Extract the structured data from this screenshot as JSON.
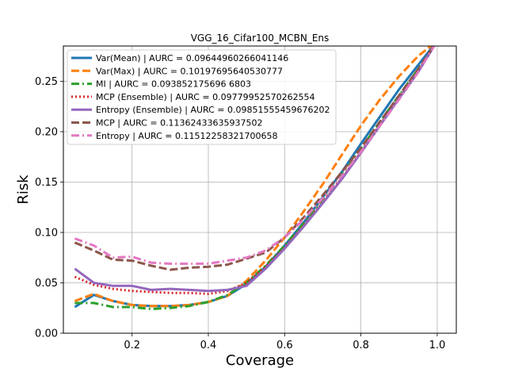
{
  "chart_data": {
    "type": "line",
    "title": "VGG_16_Cifar100_MCBN_Ens",
    "xlabel": "Coverage",
    "ylabel": "Risk",
    "xlim": [
      0.02,
      1.05
    ],
    "ylim": [
      0.0,
      0.285
    ],
    "xticks": [
      0.2,
      0.4,
      0.6,
      0.8,
      1.0
    ],
    "xtick_labels": [
      "0.2",
      "0.4",
      "0.6",
      "0.8",
      "1.0"
    ],
    "yticks": [
      0.0,
      0.05,
      0.1,
      0.15,
      0.2,
      0.25
    ],
    "ytick_labels": [
      "0.00",
      "0.05",
      "0.10",
      "0.15",
      "0.20",
      "0.25"
    ],
    "grid": true,
    "legend_position": "upper-left",
    "series": [
      {
        "name": "Var(Mean) | AURC = 0.09644960266041146",
        "color": "#1f77b4",
        "dash": "solid",
        "x": [
          0.05,
          0.1,
          0.15,
          0.2,
          0.25,
          0.3,
          0.35,
          0.4,
          0.45,
          0.5,
          0.55,
          0.6,
          0.65,
          0.7,
          0.75,
          0.8,
          0.85,
          0.9,
          0.95,
          1.0
        ],
        "y": [
          0.026,
          0.038,
          0.032,
          0.028,
          0.027,
          0.027,
          0.028,
          0.031,
          0.037,
          0.049,
          0.066,
          0.087,
          0.11,
          0.135,
          0.16,
          0.188,
          0.215,
          0.242,
          0.266,
          0.29
        ]
      },
      {
        "name": "Var(Max) | AURC = 0.10197695640530777",
        "color": "#ff7f0e",
        "dash": "dashed",
        "x": [
          0.05,
          0.1,
          0.15,
          0.2,
          0.25,
          0.3,
          0.35,
          0.4,
          0.45,
          0.5,
          0.55,
          0.6,
          0.65,
          0.7,
          0.75,
          0.8,
          0.85,
          0.9,
          0.95,
          1.0
        ],
        "y": [
          0.032,
          0.039,
          0.032,
          0.028,
          0.027,
          0.027,
          0.028,
          0.031,
          0.037,
          0.052,
          0.072,
          0.095,
          0.121,
          0.148,
          0.177,
          0.206,
          0.232,
          0.255,
          0.275,
          0.29
        ]
      },
      {
        "name": "MI | AURC = 0.093852175696 6803",
        "color": "#2ca02c",
        "dash": "dashdot",
        "x": [
          0.05,
          0.1,
          0.15,
          0.2,
          0.25,
          0.3,
          0.35,
          0.4,
          0.45,
          0.5,
          0.55,
          0.6,
          0.65,
          0.7,
          0.75,
          0.8,
          0.85,
          0.9,
          0.95,
          1.0
        ],
        "y": [
          0.03,
          0.03,
          0.026,
          0.026,
          0.024,
          0.025,
          0.027,
          0.031,
          0.038,
          0.05,
          0.067,
          0.087,
          0.109,
          0.133,
          0.157,
          0.183,
          0.21,
          0.236,
          0.262,
          0.29
        ]
      },
      {
        "name": "MCP (Ensemble) | AURC = 0.09779952570262554",
        "color": "#d62728",
        "dash": "dotted",
        "x": [
          0.05,
          0.1,
          0.15,
          0.2,
          0.25,
          0.3,
          0.35,
          0.4,
          0.45,
          0.5,
          0.55,
          0.6,
          0.65,
          0.7,
          0.75,
          0.8,
          0.85,
          0.9,
          0.95,
          1.0
        ],
        "y": [
          0.056,
          0.048,
          0.044,
          0.042,
          0.041,
          0.04,
          0.04,
          0.039,
          0.042,
          0.05,
          0.066,
          0.085,
          0.107,
          0.13,
          0.154,
          0.18,
          0.207,
          0.234,
          0.26,
          0.29
        ]
      },
      {
        "name": "Entropy (Ensemble) | AURC = 0.09851555459676202",
        "color": "#9467bd",
        "dash": "solid",
        "x": [
          0.05,
          0.1,
          0.15,
          0.2,
          0.25,
          0.3,
          0.35,
          0.4,
          0.45,
          0.5,
          0.55,
          0.6,
          0.65,
          0.7,
          0.75,
          0.8,
          0.85,
          0.9,
          0.95,
          1.0
        ],
        "y": [
          0.064,
          0.05,
          0.047,
          0.047,
          0.043,
          0.044,
          0.043,
          0.042,
          0.043,
          0.047,
          0.064,
          0.084,
          0.106,
          0.129,
          0.153,
          0.179,
          0.206,
          0.233,
          0.259,
          0.29
        ]
      },
      {
        "name": "MCP | AURC = 0.11362433635937502",
        "color": "#8c564b",
        "dash": "dashed",
        "x": [
          0.05,
          0.1,
          0.15,
          0.2,
          0.25,
          0.3,
          0.35,
          0.4,
          0.45,
          0.5,
          0.55,
          0.6,
          0.65,
          0.7,
          0.75,
          0.8,
          0.85,
          0.9,
          0.95,
          1.0
        ],
        "y": [
          0.09,
          0.082,
          0.073,
          0.072,
          0.067,
          0.063,
          0.065,
          0.066,
          0.068,
          0.074,
          0.08,
          0.095,
          0.115,
          0.137,
          0.16,
          0.184,
          0.21,
          0.236,
          0.262,
          0.29
        ]
      },
      {
        "name": "Entropy | AURC = 0.11512258321700658",
        "color": "#e377c2",
        "dash": "dashdot",
        "x": [
          0.05,
          0.1,
          0.15,
          0.2,
          0.25,
          0.3,
          0.35,
          0.4,
          0.45,
          0.5,
          0.55,
          0.6,
          0.65,
          0.7,
          0.75,
          0.8,
          0.85,
          0.9,
          0.95,
          1.0
        ],
        "y": [
          0.094,
          0.087,
          0.075,
          0.076,
          0.07,
          0.069,
          0.069,
          0.069,
          0.072,
          0.075,
          0.082,
          0.095,
          0.113,
          0.134,
          0.156,
          0.18,
          0.206,
          0.232,
          0.259,
          0.29
        ]
      }
    ]
  }
}
